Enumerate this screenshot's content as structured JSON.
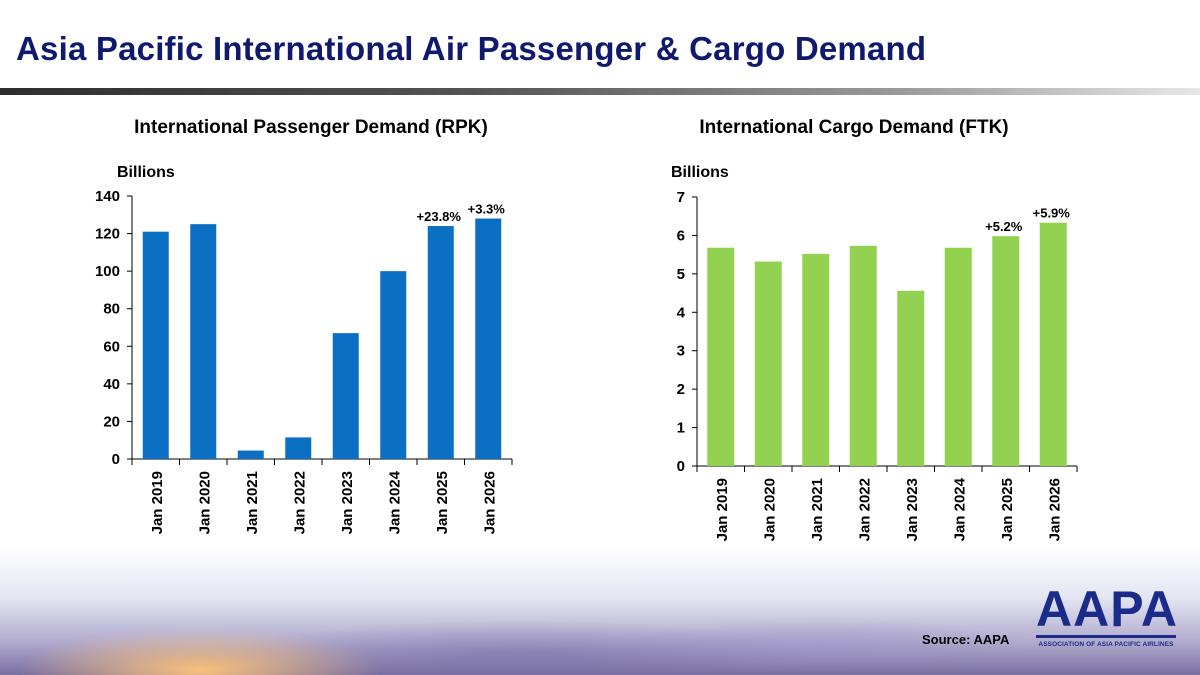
{
  "page": {
    "title": "Asia Pacific International Air Passenger & Cargo Demand",
    "source": "Source: AAPA",
    "logo": {
      "word": "AAPA",
      "subtitle": "ASSOCIATION OF ASIA PACIFIC AIRLINES"
    }
  },
  "colors": {
    "passenger_bar": "#0b6fc4",
    "cargo_bar": "#92d050",
    "title": "#0f1a6e"
  },
  "chart_data": [
    {
      "id": "rpk",
      "type": "bar",
      "title": "International Passenger Demand (RPK)",
      "ylabel": "Billions",
      "xlabel": "",
      "categories": [
        "Jan 2019",
        "Jan 2020",
        "Jan 2021",
        "Jan 2022",
        "Jan 2023",
        "Jan 2024",
        "Jan 2025",
        "Jan 2026"
      ],
      "values": [
        121,
        125,
        4.5,
        11.5,
        67,
        100,
        124,
        128
      ],
      "ylim": [
        0,
        140
      ],
      "yticks": [
        "0",
        "20",
        "40",
        "60",
        "80",
        "100",
        "120",
        "140"
      ],
      "annotations": [
        {
          "category": "Jan 2025",
          "text": "+23.8%"
        },
        {
          "category": "Jan 2026",
          "text": "+3.3%"
        }
      ],
      "grid": false,
      "color": "#0b6fc4"
    },
    {
      "id": "ftk",
      "type": "bar",
      "title": "International Cargo Demand (FTK)",
      "ylabel": "Billions",
      "xlabel": "",
      "categories": [
        "Jan 2019",
        "Jan 2020",
        "Jan 2021",
        "Jan 2022",
        "Jan 2023",
        "Jan 2024",
        "Jan 2025",
        "Jan 2026"
      ],
      "values": [
        5.68,
        5.32,
        5.52,
        5.73,
        4.56,
        5.68,
        5.98,
        6.33
      ],
      "ylim": [
        0,
        7
      ],
      "yticks": [
        "0",
        "1",
        "2",
        "3",
        "4",
        "5",
        "6",
        "7"
      ],
      "annotations": [
        {
          "category": "Jan 2025",
          "text": "+5.2%"
        },
        {
          "category": "Jan 2026",
          "text": "+5.9%"
        }
      ],
      "grid": false,
      "color": "#92d050"
    }
  ]
}
